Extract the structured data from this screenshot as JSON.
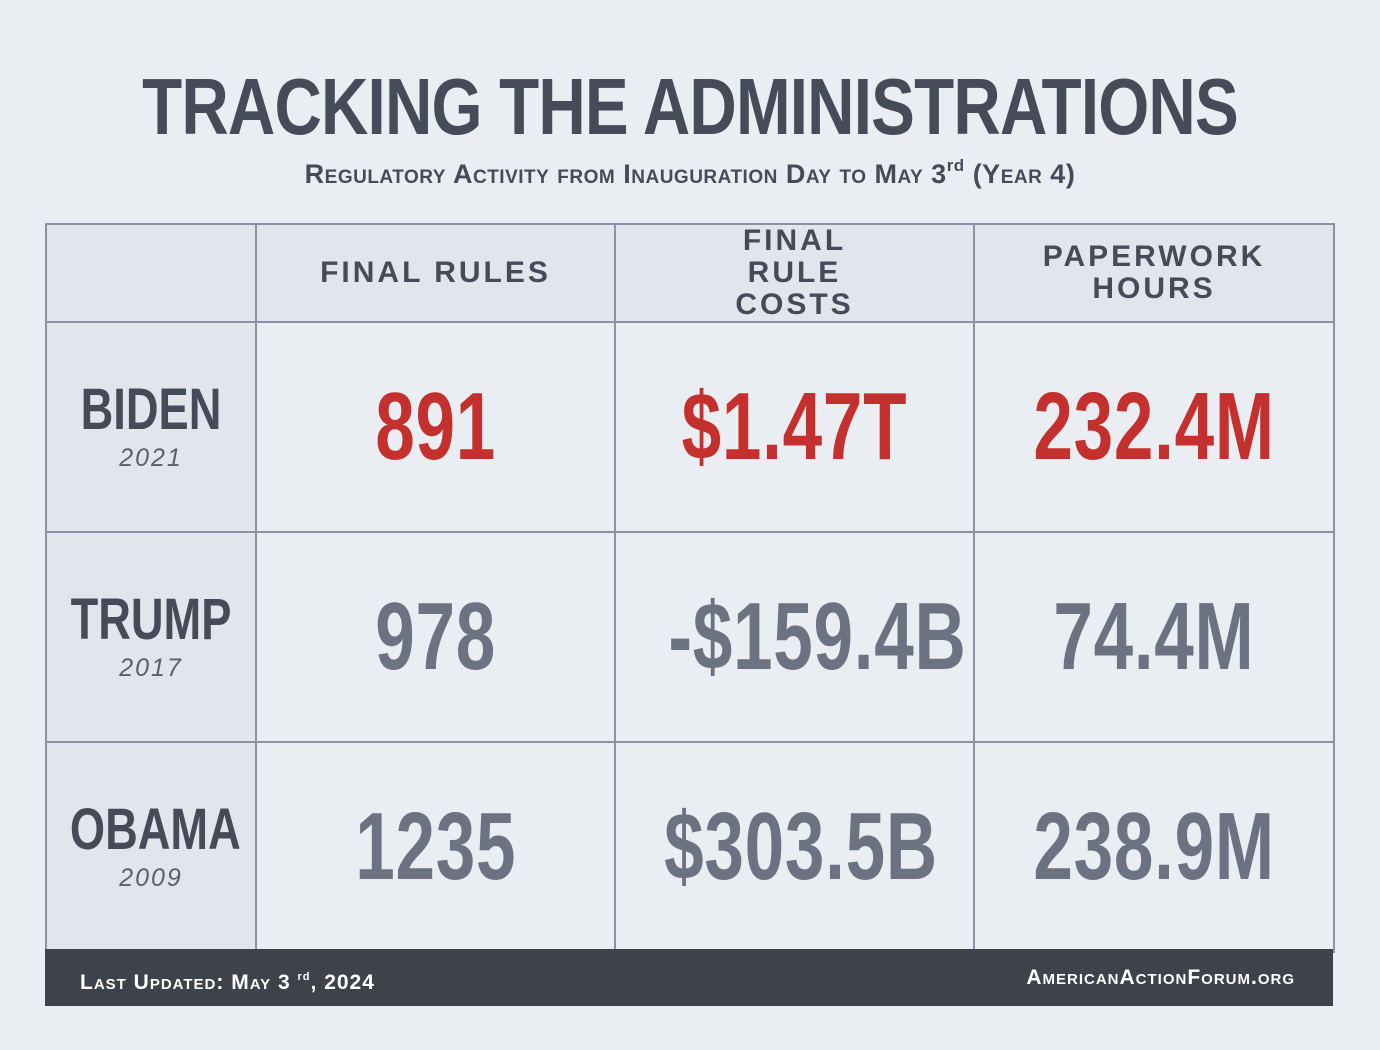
{
  "header": {
    "title": "TRACKING THE ADMINISTRATIONS",
    "subtitle_main": "Regulatory Activity from Inauguration Day to May 3",
    "subtitle_sup": "rd",
    "subtitle_tail": " (Year 4)"
  },
  "table": {
    "columns": [
      "",
      "FINAL RULES",
      "FINAL RULE COSTS",
      "PAPERWORK HOURS"
    ],
    "rows": [
      {
        "name": "BIDEN",
        "year": "2021",
        "final_rules": "891",
        "costs": "$1.47T",
        "hours": "232.4M",
        "highlight": true
      },
      {
        "name": "TRUMP",
        "year": "2017",
        "final_rules": "978",
        "costs": "-$159.4B",
        "hours": "74.4M",
        "highlight": false
      },
      {
        "name": "OBAMA",
        "year": "2009",
        "final_rules": "1235",
        "costs": "$303.5B",
        "hours": "238.9M",
        "highlight": false
      }
    ]
  },
  "footer": {
    "updated_main": "Last Updated: May 3",
    "updated_sup": "rd",
    "updated_tail": ", 2024",
    "site": "AmericanActionForum.org"
  },
  "colors": {
    "highlight": "#c4302d",
    "muted": "#6b7282",
    "text_dark": "#464b5a",
    "footer_bg": "#3e424b"
  }
}
